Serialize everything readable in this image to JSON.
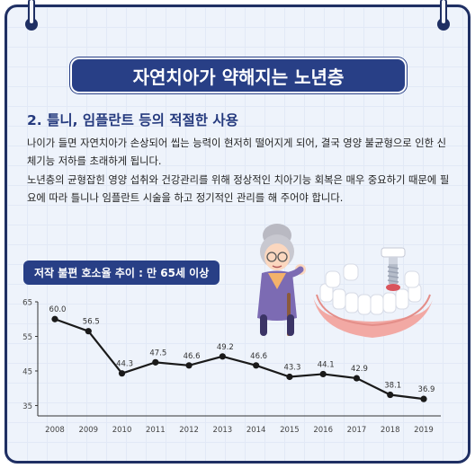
{
  "banner_title": "자연치아가 약해지는 노년층",
  "section_heading": "2. 틀니, 임플란트 등의 적절한 사용",
  "paragraphs": [
    "나이가 들면 자연치아가 손상되어 씹는 능력이 현저히 떨어지게 되어, 결국 영양 불균형으로 인한 신체기능 저하를 초래하게 됩니다.",
    "노년층의 균형잡힌 영양 섭취와 건강관리를 위해 정상적인 치아기능 회복은 매우 중요하기 때문에 필요에 따라 틀니나 임플란트 시술을 하고 정기적인 관리를 해 주어야 합니다."
  ],
  "chart_data": {
    "type": "line",
    "title": "저작 불편 호소율 추이 : 만 65세 이상",
    "xlabel": "",
    "ylabel": "",
    "categories": [
      "2008",
      "2009",
      "2010",
      "2011",
      "2012",
      "2013",
      "2014",
      "2015",
      "2016",
      "2017",
      "2018",
      "2019"
    ],
    "values": [
      60.0,
      56.5,
      44.3,
      47.5,
      46.6,
      49.2,
      46.6,
      43.3,
      44.1,
      42.9,
      38.1,
      36.9
    ],
    "value_labels": [
      "60.0",
      "56.5",
      "44.3",
      "47.5",
      "46.6",
      "49.2",
      "46.6",
      "43.3",
      "44.1",
      "42.9",
      "38.1",
      "36.9"
    ],
    "y_ticks": [
      65,
      55,
      45,
      35
    ],
    "ylim": [
      32,
      65
    ],
    "grid": false,
    "line_color": "#1a1a1a"
  },
  "colors": {
    "frame": "#1f2f63",
    "banner": "#283f86",
    "background": "#eef3fb"
  }
}
